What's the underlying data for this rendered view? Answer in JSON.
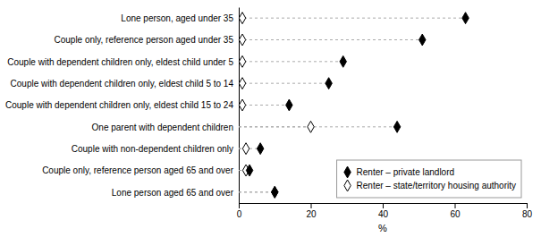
{
  "chart_data": {
    "type": "dot",
    "orientation": "horizontal",
    "categories": [
      "Lone person, aged under 35",
      "Couple only, reference person aged under 35",
      "Couple with dependent children only, eldest child under 5",
      "Couple with dependent children only, eldest child 5 to 14",
      "Couple with dependent children only, eldest child 15 to 24",
      "One parent with dependent children",
      "Couple with non-dependent children only",
      "Couple only, reference person aged 65 and over",
      "Lone person aged 65 and over"
    ],
    "series": [
      {
        "name": "Renter – private landlord",
        "color": "#000000",
        "marker": "diamond",
        "values": [
          63,
          51,
          29,
          25,
          14,
          44,
          6,
          3,
          10
        ]
      },
      {
        "name": "Renter – state/territory housing authority",
        "color": "#ffffff",
        "marker": "diamond",
        "values": [
          1,
          1,
          1,
          1,
          1,
          20,
          2,
          2,
          10
        ]
      }
    ],
    "color": "#aaaaaa",
    "line_style": "dashed",
    "x_label": "%",
    "xlim": [
      0,
      80
    ],
    "xticks": [
      0,
      20,
      40,
      60,
      80
    ],
    "grid": false,
    "legend": "lower right"
  }
}
